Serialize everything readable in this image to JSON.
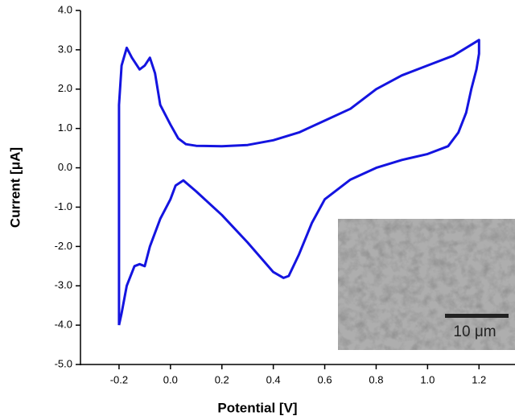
{
  "chart_data": {
    "type": "line",
    "xlabel": "Potential [V]",
    "ylabel": "Current [μA]",
    "xlim": [
      -0.35,
      1.34
    ],
    "ylim": [
      -5,
      4
    ],
    "xticks": [
      -0.2,
      {
        "value": 0,
        "label": "0.0"
      },
      0.2,
      0.4,
      0.6,
      0.8,
      {
        "value": 1,
        "label": "1.0"
      },
      1.2
    ],
    "yticks": [
      {
        "value": -5,
        "label": "-5.0"
      },
      {
        "value": -4,
        "label": "-4.0"
      },
      {
        "value": -3,
        "label": "-3.0"
      },
      {
        "value": -2,
        "label": "-2.0"
      },
      {
        "value": -1,
        "label": "-1.0"
      },
      {
        "value": 0,
        "label": "0.0"
      },
      {
        "value": 1,
        "label": "1.0"
      },
      {
        "value": 2,
        "label": "2.0"
      },
      {
        "value": 3,
        "label": "3.0"
      },
      {
        "value": 4,
        "label": "4.0"
      }
    ],
    "inset_scale_label": "10 μm",
    "series": [
      {
        "color": "#1414e0",
        "x": [
          -0.2,
          -0.2,
          -0.19,
          -0.17,
          -0.15,
          -0.12,
          -0.1,
          -0.08,
          -0.06,
          -0.04,
          0.0,
          0.03,
          0.06,
          0.1,
          0.2,
          0.3,
          0.4,
          0.5,
          0.6,
          0.7,
          0.8,
          0.9,
          1.0,
          1.1,
          1.2,
          1.2,
          1.19,
          1.17,
          1.15,
          1.12,
          1.08,
          1.0,
          0.9,
          0.8,
          0.7,
          0.6,
          0.55,
          0.5,
          0.46,
          0.44,
          0.4,
          0.3,
          0.2,
          0.1,
          0.05,
          0.02,
          0.0,
          -0.04,
          -0.08,
          -0.1,
          -0.12,
          -0.14,
          -0.17,
          -0.19,
          -0.2
        ],
        "values": [
          -4.0,
          1.6,
          2.6,
          3.05,
          2.8,
          2.5,
          2.6,
          2.8,
          2.4,
          1.6,
          1.1,
          0.75,
          0.6,
          0.56,
          0.55,
          0.58,
          0.7,
          0.9,
          1.2,
          1.5,
          2.0,
          2.35,
          2.6,
          2.85,
          3.25,
          2.9,
          2.5,
          2.0,
          1.4,
          0.9,
          0.55,
          0.35,
          0.2,
          0.0,
          -0.3,
          -0.8,
          -1.4,
          -2.2,
          -2.75,
          -2.8,
          -2.65,
          -1.9,
          -1.2,
          -0.6,
          -0.32,
          -0.45,
          -0.8,
          -1.3,
          -2.0,
          -2.5,
          -2.45,
          -2.5,
          -3.0,
          -3.7,
          -4.0
        ]
      }
    ]
  }
}
